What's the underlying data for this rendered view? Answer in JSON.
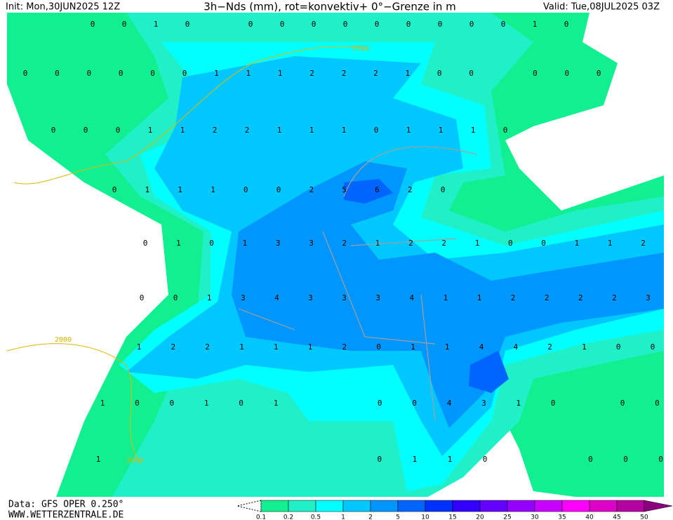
{
  "header": {
    "init": "Init: Mon,30JUN2025 12Z",
    "title": "3h−Nds (mm), rot=konvektiv+ 0°−Grenze in m",
    "valid": "Valid: Tue,08JUL2025 03Z"
  },
  "isolines": [
    "1750",
    "2000",
    "2000"
  ],
  "grid_labels": [
    [
      0,
      0,
      1,
      0,
      null,
      0,
      0,
      0,
      0,
      0,
      0,
      0,
      0,
      0,
      1,
      0
    ],
    [
      0,
      0,
      0,
      0,
      0,
      0,
      1,
      1,
      1,
      2,
      2,
      2,
      1,
      0,
      0,
      null,
      0,
      0,
      0
    ],
    [
      0,
      0,
      0,
      1,
      1,
      2,
      2,
      1,
      1,
      1,
      0,
      1,
      1,
      1,
      0
    ],
    [
      0,
      1,
      1,
      1,
      0,
      0,
      2,
      5,
      6,
      2,
      0
    ],
    [
      0,
      1,
      0,
      1,
      3,
      3,
      2,
      1,
      2,
      2,
      1,
      0,
      0,
      1,
      1,
      2
    ],
    [
      0,
      0,
      1,
      3,
      4,
      3,
      3,
      3,
      4,
      1,
      1,
      2,
      2,
      2,
      2,
      3
    ],
    [
      1,
      2,
      2,
      1,
      1,
      1,
      2,
      0,
      1,
      1,
      4,
      4,
      2,
      1,
      0,
      0
    ],
    [
      1,
      0,
      0,
      1,
      0,
      1,
      null,
      null,
      0,
      0,
      4,
      3,
      1,
      0,
      null,
      0,
      0
    ],
    [
      1,
      null,
      null,
      null,
      null,
      null,
      null,
      null,
      0,
      1,
      1,
      0,
      null,
      null,
      0,
      0,
      0
    ]
  ],
  "footer": {
    "data": "Data: GFS OPER 0.250°",
    "site": "WWW.WETTERZENTRALE.DE"
  },
  "colorbar": [
    {
      "label": "0.1",
      "color": "#10f090"
    },
    {
      "label": "0.2",
      "color": "#20f0c8"
    },
    {
      "label": "0.5",
      "color": "#00ffff"
    },
    {
      "label": "1",
      "color": "#00c8ff"
    },
    {
      "label": "2",
      "color": "#0096ff"
    },
    {
      "label": "5",
      "color": "#0064ff"
    },
    {
      "label": "10",
      "color": "#0032ff"
    },
    {
      "label": "15",
      "color": "#3200ff"
    },
    {
      "label": "20",
      "color": "#6400ff"
    },
    {
      "label": "25",
      "color": "#9600ff"
    },
    {
      "label": "30",
      "color": "#c800ff"
    },
    {
      "label": "35",
      "color": "#ff00ff"
    },
    {
      "label": "40",
      "color": "#dc00c8"
    },
    {
      "label": "45",
      "color": "#b400a0"
    },
    {
      "label": "50",
      "color": "#8c0080"
    }
  ]
}
